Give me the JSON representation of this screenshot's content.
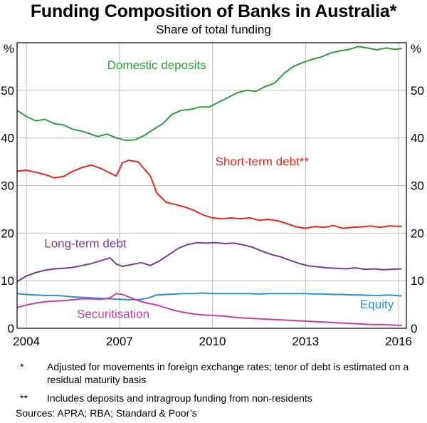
{
  "title": "Funding Composition of Banks in Australia*",
  "subtitle": "Share of total funding",
  "chart_data": {
    "type": "line",
    "title": "Funding Composition of Banks in Australia*",
    "subtitle": "Share of total funding",
    "unit_left": "%",
    "unit_right": "%",
    "xlim": [
      2003.7,
      2016.25
    ],
    "ylim": [
      0,
      60
    ],
    "x_ticks": [
      "2004",
      "2007",
      "2010",
      "2013",
      "2016"
    ],
    "x_tick_values": [
      2004,
      2007,
      2010,
      2013,
      2016
    ],
    "y_ticks": [
      "0",
      "10",
      "20",
      "30",
      "40",
      "50"
    ],
    "y_tick_values": [
      0,
      10,
      20,
      30,
      40,
      50
    ],
    "grid": true,
    "series": [
      {
        "name": "Domestic deposits",
        "color": "#2e9b3c",
        "points": [
          [
            2003.7,
            45.8
          ],
          [
            2004.0,
            44.5
          ],
          [
            2004.3,
            43.6
          ],
          [
            2004.6,
            43.9
          ],
          [
            2004.9,
            43.0
          ],
          [
            2005.2,
            42.7
          ],
          [
            2005.5,
            41.8
          ],
          [
            2005.8,
            41.4
          ],
          [
            2006.0,
            41.0
          ],
          [
            2006.3,
            40.3
          ],
          [
            2006.6,
            40.8
          ],
          [
            2006.9,
            40.0
          ],
          [
            2007.2,
            39.5
          ],
          [
            2007.5,
            39.6
          ],
          [
            2007.8,
            40.5
          ],
          [
            2008.1,
            41.8
          ],
          [
            2008.4,
            43.0
          ],
          [
            2008.7,
            45.0
          ],
          [
            2009.0,
            45.8
          ],
          [
            2009.3,
            46.0
          ],
          [
            2009.6,
            46.5
          ],
          [
            2009.9,
            46.5
          ],
          [
            2010.2,
            47.5
          ],
          [
            2010.5,
            48.5
          ],
          [
            2010.8,
            49.5
          ],
          [
            2011.1,
            50.0
          ],
          [
            2011.4,
            49.8
          ],
          [
            2011.7,
            50.8
          ],
          [
            2012.0,
            51.5
          ],
          [
            2012.3,
            53.5
          ],
          [
            2012.6,
            55.0
          ],
          [
            2012.9,
            55.8
          ],
          [
            2013.2,
            56.5
          ],
          [
            2013.5,
            57.0
          ],
          [
            2013.8,
            57.8
          ],
          [
            2014.1,
            58.3
          ],
          [
            2014.4,
            58.6
          ],
          [
            2014.7,
            59.2
          ],
          [
            2015.0,
            58.9
          ],
          [
            2015.3,
            58.5
          ],
          [
            2015.6,
            58.9
          ],
          [
            2015.9,
            58.6
          ],
          [
            2016.1,
            58.8
          ]
        ]
      },
      {
        "name": "Short-term debt**",
        "color": "#e8261e",
        "points": [
          [
            2003.7,
            33.0
          ],
          [
            2004.0,
            33.2
          ],
          [
            2004.3,
            32.8
          ],
          [
            2004.6,
            32.3
          ],
          [
            2004.9,
            31.6
          ],
          [
            2005.2,
            31.9
          ],
          [
            2005.5,
            33.0
          ],
          [
            2005.8,
            33.8
          ],
          [
            2006.1,
            34.3
          ],
          [
            2006.4,
            33.6
          ],
          [
            2006.7,
            32.6
          ],
          [
            2006.9,
            32.0
          ],
          [
            2007.1,
            34.8
          ],
          [
            2007.3,
            35.3
          ],
          [
            2007.6,
            35.0
          ],
          [
            2007.8,
            33.5
          ],
          [
            2008.0,
            32.0
          ],
          [
            2008.2,
            28.5
          ],
          [
            2008.5,
            26.5
          ],
          [
            2008.8,
            26.0
          ],
          [
            2009.1,
            25.5
          ],
          [
            2009.4,
            24.8
          ],
          [
            2009.7,
            23.8
          ],
          [
            2010.0,
            23.2
          ],
          [
            2010.3,
            23.0
          ],
          [
            2010.6,
            23.2
          ],
          [
            2010.9,
            23.0
          ],
          [
            2011.2,
            23.2
          ],
          [
            2011.5,
            22.7
          ],
          [
            2011.8,
            22.9
          ],
          [
            2012.1,
            22.6
          ],
          [
            2012.4,
            22.0
          ],
          [
            2012.7,
            21.3
          ],
          [
            2013.0,
            21.0
          ],
          [
            2013.3,
            21.4
          ],
          [
            2013.6,
            21.2
          ],
          [
            2013.9,
            21.6
          ],
          [
            2014.2,
            21.0
          ],
          [
            2014.5,
            21.2
          ],
          [
            2014.8,
            21.3
          ],
          [
            2015.1,
            21.5
          ],
          [
            2015.4,
            21.2
          ],
          [
            2015.7,
            21.5
          ],
          [
            2016.1,
            21.4
          ]
        ]
      },
      {
        "name": "Long-term debt",
        "color": "#7a3a9b",
        "points": [
          [
            2003.7,
            9.8
          ],
          [
            2004.0,
            11.0
          ],
          [
            2004.3,
            11.7
          ],
          [
            2004.6,
            12.2
          ],
          [
            2004.9,
            12.5
          ],
          [
            2005.2,
            12.6
          ],
          [
            2005.5,
            12.8
          ],
          [
            2005.8,
            13.2
          ],
          [
            2006.1,
            13.6
          ],
          [
            2006.4,
            14.2
          ],
          [
            2006.7,
            14.8
          ],
          [
            2006.9,
            13.5
          ],
          [
            2007.1,
            13.0
          ],
          [
            2007.4,
            13.4
          ],
          [
            2007.7,
            13.8
          ],
          [
            2008.0,
            13.2
          ],
          [
            2008.3,
            14.2
          ],
          [
            2008.6,
            15.5
          ],
          [
            2008.9,
            16.8
          ],
          [
            2009.2,
            17.6
          ],
          [
            2009.5,
            18.0
          ],
          [
            2009.8,
            17.9
          ],
          [
            2010.1,
            18.0
          ],
          [
            2010.4,
            17.8
          ],
          [
            2010.7,
            17.9
          ],
          [
            2011.0,
            17.5
          ],
          [
            2011.3,
            17.0
          ],
          [
            2011.6,
            16.2
          ],
          [
            2011.9,
            15.5
          ],
          [
            2012.2,
            15.0
          ],
          [
            2012.5,
            14.3
          ],
          [
            2012.8,
            13.6
          ],
          [
            2013.1,
            13.1
          ],
          [
            2013.4,
            12.9
          ],
          [
            2013.7,
            12.7
          ],
          [
            2014.0,
            12.6
          ],
          [
            2014.3,
            12.5
          ],
          [
            2014.6,
            12.7
          ],
          [
            2014.9,
            12.4
          ],
          [
            2015.2,
            12.5
          ],
          [
            2015.5,
            12.3
          ],
          [
            2015.8,
            12.4
          ],
          [
            2016.1,
            12.5
          ]
        ]
      },
      {
        "name": "Equity",
        "color": "#2f8fd6",
        "points": [
          [
            2003.7,
            7.3
          ],
          [
            2004.0,
            7.1
          ],
          [
            2004.3,
            7.0
          ],
          [
            2004.6,
            6.9
          ],
          [
            2004.9,
            6.9
          ],
          [
            2005.2,
            6.8
          ],
          [
            2005.5,
            6.6
          ],
          [
            2005.8,
            6.5
          ],
          [
            2006.1,
            6.4
          ],
          [
            2006.4,
            6.3
          ],
          [
            2006.7,
            6.2
          ],
          [
            2007.0,
            6.1
          ],
          [
            2007.3,
            6.0
          ],
          [
            2007.6,
            6.0
          ],
          [
            2007.9,
            6.3
          ],
          [
            2008.2,
            7.0
          ],
          [
            2008.5,
            7.1
          ],
          [
            2008.8,
            7.2
          ],
          [
            2009.1,
            7.3
          ],
          [
            2009.4,
            7.3
          ],
          [
            2009.7,
            7.4
          ],
          [
            2010.0,
            7.3
          ],
          [
            2010.3,
            7.3
          ],
          [
            2010.6,
            7.3
          ],
          [
            2010.9,
            7.3
          ],
          [
            2011.2,
            7.3
          ],
          [
            2011.5,
            7.2
          ],
          [
            2011.8,
            7.3
          ],
          [
            2012.1,
            7.3
          ],
          [
            2012.4,
            7.3
          ],
          [
            2012.7,
            7.3
          ],
          [
            2013.0,
            7.3
          ],
          [
            2013.3,
            7.2
          ],
          [
            2013.6,
            7.2
          ],
          [
            2013.9,
            7.1
          ],
          [
            2014.2,
            7.1
          ],
          [
            2014.5,
            7.0
          ],
          [
            2014.8,
            7.0
          ],
          [
            2015.1,
            6.9
          ],
          [
            2015.4,
            6.9
          ],
          [
            2015.7,
            7.0
          ],
          [
            2016.1,
            6.8
          ]
        ]
      },
      {
        "name": "Securitisation",
        "color": "#c93fa0",
        "points": [
          [
            2003.7,
            4.4
          ],
          [
            2004.0,
            4.9
          ],
          [
            2004.3,
            5.3
          ],
          [
            2004.6,
            5.6
          ],
          [
            2004.9,
            5.7
          ],
          [
            2005.2,
            5.8
          ],
          [
            2005.5,
            6.0
          ],
          [
            2005.8,
            6.2
          ],
          [
            2006.1,
            6.2
          ],
          [
            2006.4,
            6.1
          ],
          [
            2006.7,
            6.4
          ],
          [
            2006.9,
            7.3
          ],
          [
            2007.1,
            7.1
          ],
          [
            2007.3,
            6.6
          ],
          [
            2007.6,
            5.8
          ],
          [
            2007.9,
            5.3
          ],
          [
            2008.2,
            4.9
          ],
          [
            2008.5,
            4.3
          ],
          [
            2008.8,
            3.7
          ],
          [
            2009.1,
            3.3
          ],
          [
            2009.4,
            3.0
          ],
          [
            2009.7,
            2.8
          ],
          [
            2010.0,
            2.7
          ],
          [
            2010.3,
            2.6
          ],
          [
            2010.6,
            2.4
          ],
          [
            2010.9,
            2.2
          ],
          [
            2011.2,
            2.1
          ],
          [
            2011.5,
            2.0
          ],
          [
            2011.8,
            1.9
          ],
          [
            2012.1,
            1.8
          ],
          [
            2012.4,
            1.7
          ],
          [
            2012.7,
            1.6
          ],
          [
            2013.0,
            1.5
          ],
          [
            2013.3,
            1.4
          ],
          [
            2013.6,
            1.3
          ],
          [
            2013.9,
            1.2
          ],
          [
            2014.2,
            1.1
          ],
          [
            2014.5,
            1.0
          ],
          [
            2014.8,
            0.9
          ],
          [
            2015.1,
            0.8
          ],
          [
            2015.4,
            0.8
          ],
          [
            2015.7,
            0.7
          ],
          [
            2016.1,
            0.6
          ]
        ]
      }
    ],
    "labels": [
      {
        "text": "Domestic deposits",
        "series": "Domestic deposits",
        "x": 2008.2,
        "y": 54.5
      },
      {
        "text": "Short-term debt**",
        "series": "Short-term debt**",
        "x": 2011.6,
        "y": 34.2
      },
      {
        "text": "Long-term debt",
        "series": "Long-term debt",
        "x": 2005.9,
        "y": 17.0
      },
      {
        "text": "Equity",
        "series": "Equity",
        "x": 2015.3,
        "y": 4.2
      },
      {
        "text": "Securitisation",
        "series": "Securitisation",
        "x": 2006.8,
        "y": 2.2
      }
    ]
  },
  "notes": [
    {
      "mark": "*",
      "text": "Adjusted for movements in foreign exchange rates; tenor of debt is estimated on a residual maturity basis"
    },
    {
      "mark": "**",
      "text": "Includes deposits and intragroup funding from non-residents"
    }
  ],
  "sources": "Sources:   APRA; RBA; Standard & Poor’s"
}
